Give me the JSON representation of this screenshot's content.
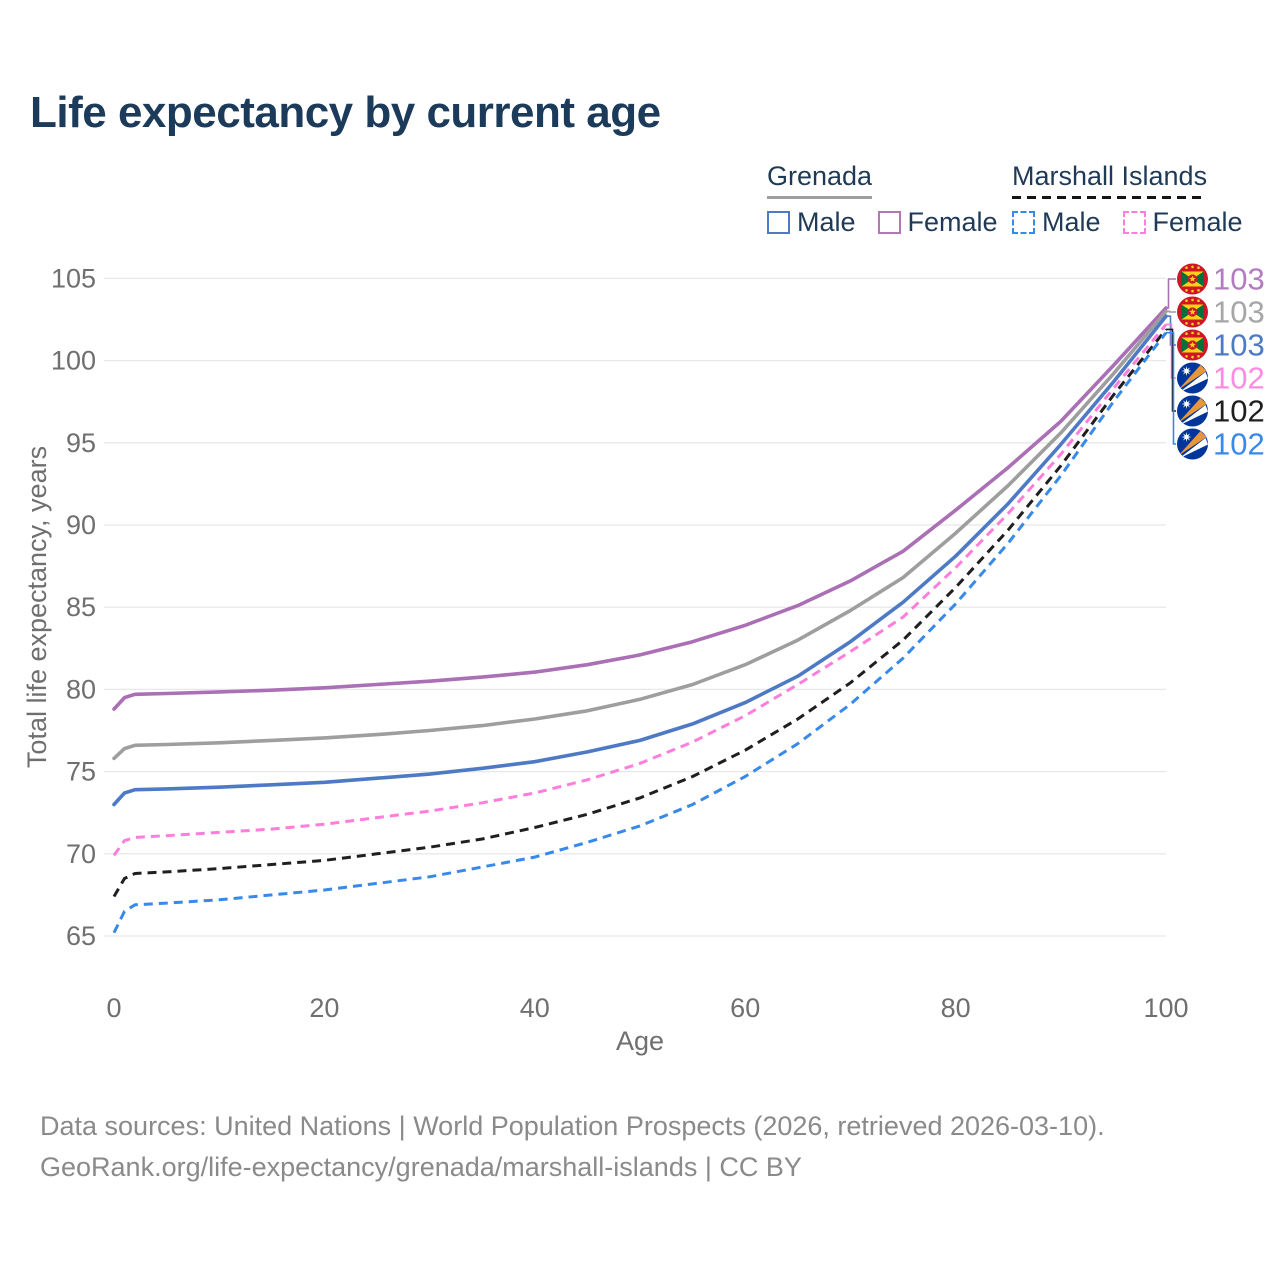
{
  "title": "Life expectancy by current age",
  "watermark": "100",
  "footer": {
    "line1": "Data sources: United Nations | World Population Prospects (2026, retrieved 2026-03-10).",
    "line2": "GeoRank.org/life-expectancy/grenada/marshall-islands | CC BY"
  },
  "legend": {
    "groups": [
      {
        "label": "Grenada",
        "line_style": "solid",
        "underline_color": "#9e9e9e",
        "items": [
          {
            "label": "Male",
            "color": "#4e7ac5"
          },
          {
            "label": "Female",
            "color": "#b278b4"
          }
        ]
      },
      {
        "label": "Marshall Islands",
        "line_style": "dashed",
        "underline_color": "#141414",
        "items": [
          {
            "label": "Male",
            "color": "#3789ea"
          },
          {
            "label": "Female",
            "color": "#ff7edb"
          }
        ]
      }
    ]
  },
  "chart_data": {
    "type": "line",
    "title": "Life expectancy by current age",
    "xlabel": "Age",
    "ylabel": "Total life expectancy, years",
    "xlim": [
      0,
      100
    ],
    "ylim": [
      63.5,
      106.5
    ],
    "xticks": [
      0,
      20,
      40,
      60,
      80,
      100
    ],
    "yticks": [
      65,
      70,
      75,
      80,
      85,
      90,
      95,
      100,
      105
    ],
    "grid": true,
    "legend_position": "top-right",
    "series": [
      {
        "name": "Grenada Female",
        "country": "Grenada",
        "sex": "Female",
        "color": "#aa6fb5",
        "line_style": "solid",
        "flag": "grenada",
        "end_label": "103",
        "end_label_color": "#b47cc0",
        "points": [
          [
            0,
            78.8
          ],
          [
            1,
            79.5
          ],
          [
            2,
            79.7
          ],
          [
            5,
            79.75
          ],
          [
            10,
            79.85
          ],
          [
            15,
            79.95
          ],
          [
            20,
            80.1
          ],
          [
            25,
            80.3
          ],
          [
            30,
            80.5
          ],
          [
            35,
            80.75
          ],
          [
            40,
            81.05
          ],
          [
            45,
            81.5
          ],
          [
            50,
            82.1
          ],
          [
            55,
            82.9
          ],
          [
            60,
            83.9
          ],
          [
            65,
            85.1
          ],
          [
            70,
            86.6
          ],
          [
            75,
            88.4
          ],
          [
            80,
            90.9
          ],
          [
            85,
            93.5
          ],
          [
            90,
            96.3
          ],
          [
            95,
            99.7
          ],
          [
            100,
            103.2
          ]
        ]
      },
      {
        "name": "Grenada Both sexes",
        "country": "Grenada",
        "sex": "Both sexes",
        "color": "#9e9e9e",
        "line_style": "solid",
        "flag": "grenada",
        "end_label": "103",
        "end_label_color": "#a6a6a6",
        "points": [
          [
            0,
            75.8
          ],
          [
            1,
            76.4
          ],
          [
            2,
            76.6
          ],
          [
            5,
            76.65
          ],
          [
            10,
            76.75
          ],
          [
            15,
            76.9
          ],
          [
            20,
            77.05
          ],
          [
            25,
            77.25
          ],
          [
            30,
            77.5
          ],
          [
            35,
            77.8
          ],
          [
            40,
            78.2
          ],
          [
            45,
            78.7
          ],
          [
            50,
            79.4
          ],
          [
            55,
            80.3
          ],
          [
            60,
            81.5
          ],
          [
            65,
            83.0
          ],
          [
            70,
            84.8
          ],
          [
            75,
            86.8
          ],
          [
            80,
            89.5
          ],
          [
            85,
            92.4
          ],
          [
            90,
            95.6
          ],
          [
            95,
            99.2
          ],
          [
            100,
            103.0
          ]
        ]
      },
      {
        "name": "Grenada Male",
        "country": "Grenada",
        "sex": "Male",
        "color": "#4e7ac5",
        "line_style": "solid",
        "flag": "grenada",
        "end_label": "103",
        "end_label_color": "#4e7ac5",
        "points": [
          [
            0,
            73.0
          ],
          [
            1,
            73.7
          ],
          [
            2,
            73.9
          ],
          [
            5,
            73.95
          ],
          [
            10,
            74.05
          ],
          [
            15,
            74.2
          ],
          [
            20,
            74.35
          ],
          [
            25,
            74.6
          ],
          [
            30,
            74.85
          ],
          [
            35,
            75.2
          ],
          [
            40,
            75.6
          ],
          [
            45,
            76.2
          ],
          [
            50,
            76.9
          ],
          [
            55,
            77.9
          ],
          [
            60,
            79.2
          ],
          [
            65,
            80.8
          ],
          [
            70,
            82.9
          ],
          [
            75,
            85.3
          ],
          [
            80,
            88.1
          ],
          [
            85,
            91.3
          ],
          [
            90,
            94.9
          ],
          [
            95,
            98.7
          ],
          [
            100,
            102.7
          ]
        ]
      },
      {
        "name": "Marshall Islands Female",
        "country": "Marshall Islands",
        "sex": "Female",
        "color": "#ff7edb",
        "line_style": "dashed",
        "flag": "marshall-islands",
        "end_label": "102",
        "end_label_color": "#ff8ae2",
        "points": [
          [
            0,
            69.9
          ],
          [
            1,
            70.8
          ],
          [
            2,
            71.0
          ],
          [
            5,
            71.1
          ],
          [
            10,
            71.3
          ],
          [
            15,
            71.5
          ],
          [
            20,
            71.8
          ],
          [
            25,
            72.2
          ],
          [
            30,
            72.6
          ],
          [
            35,
            73.1
          ],
          [
            40,
            73.7
          ],
          [
            45,
            74.5
          ],
          [
            50,
            75.5
          ],
          [
            55,
            76.8
          ],
          [
            60,
            78.4
          ],
          [
            65,
            80.3
          ],
          [
            70,
            82.3
          ],
          [
            75,
            84.4
          ],
          [
            80,
            87.4
          ],
          [
            85,
            90.7
          ],
          [
            90,
            94.3
          ],
          [
            95,
            98.3
          ],
          [
            100,
            102.2
          ]
        ]
      },
      {
        "name": "Marshall Islands Both sexes",
        "country": "Marshall Islands",
        "sex": "Both sexes",
        "color": "#1f1f1f",
        "line_style": "dashed",
        "flag": "marshall-islands",
        "end_label": "102",
        "end_label_color": "#1f1f1f",
        "points": [
          [
            0,
            67.4
          ],
          [
            1,
            68.5
          ],
          [
            2,
            68.8
          ],
          [
            5,
            68.9
          ],
          [
            10,
            69.1
          ],
          [
            15,
            69.35
          ],
          [
            20,
            69.6
          ],
          [
            25,
            70.0
          ],
          [
            30,
            70.4
          ],
          [
            35,
            70.9
          ],
          [
            40,
            71.6
          ],
          [
            45,
            72.4
          ],
          [
            50,
            73.4
          ],
          [
            55,
            74.7
          ],
          [
            60,
            76.3
          ],
          [
            65,
            78.2
          ],
          [
            70,
            80.4
          ],
          [
            75,
            83.0
          ],
          [
            80,
            86.2
          ],
          [
            85,
            89.7
          ],
          [
            90,
            93.6
          ],
          [
            95,
            97.9
          ],
          [
            100,
            101.9
          ]
        ]
      },
      {
        "name": "Marshall Islands Male",
        "country": "Marshall Islands",
        "sex": "Male",
        "color": "#3789ea",
        "line_style": "dashed",
        "flag": "marshall-islands",
        "end_label": "102",
        "end_label_color": "#3789ea",
        "points": [
          [
            0,
            65.2
          ],
          [
            1,
            66.5
          ],
          [
            2,
            66.9
          ],
          [
            5,
            67.0
          ],
          [
            10,
            67.2
          ],
          [
            15,
            67.5
          ],
          [
            20,
            67.8
          ],
          [
            25,
            68.2
          ],
          [
            30,
            68.6
          ],
          [
            35,
            69.2
          ],
          [
            40,
            69.8
          ],
          [
            45,
            70.7
          ],
          [
            50,
            71.7
          ],
          [
            55,
            73.0
          ],
          [
            60,
            74.7
          ],
          [
            65,
            76.7
          ],
          [
            70,
            79.1
          ],
          [
            75,
            81.9
          ],
          [
            80,
            85.2
          ],
          [
            85,
            88.9
          ],
          [
            90,
            93.0
          ],
          [
            95,
            97.5
          ],
          [
            100,
            101.7
          ]
        ]
      }
    ]
  }
}
